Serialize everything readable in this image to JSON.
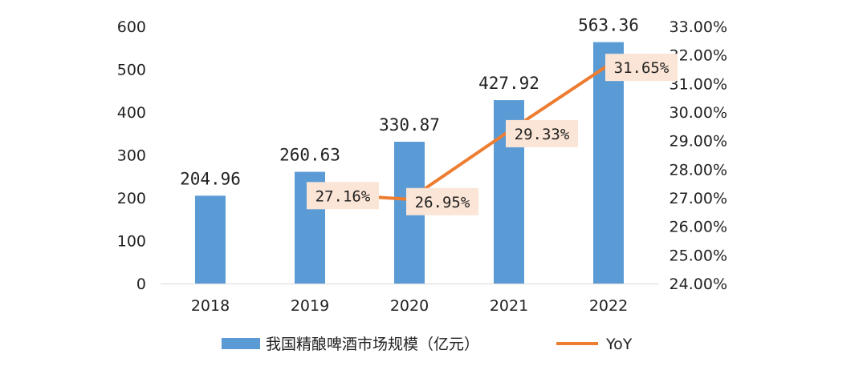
{
  "chart_data": {
    "type": "bar",
    "categories": [
      "2018",
      "2019",
      "2020",
      "2021",
      "2022"
    ],
    "series": [
      {
        "name": "我国精酿啤酒市场规模（亿元）",
        "type": "bar",
        "axis": "left",
        "values": [
          204.96,
          260.63,
          330.87,
          427.92,
          563.36
        ],
        "labels": [
          "204.96",
          "260.63",
          "330.87",
          "427.92",
          "563.36"
        ],
        "color": "#5B9BD5"
      },
      {
        "name": "YoY",
        "type": "line",
        "axis": "right",
        "values": [
          null,
          27.16,
          26.95,
          29.33,
          31.65
        ],
        "labels": [
          "",
          "27.16%",
          "26.95%",
          "29.33%",
          "31.65%"
        ],
        "color": "#ED7D31",
        "label_bg": "#FBE5D6"
      }
    ],
    "y_left": {
      "ylim": [
        0,
        600
      ],
      "ticks": [
        "0",
        "100",
        "200",
        "300",
        "400",
        "500",
        "600"
      ]
    },
    "y_right": {
      "ylim": [
        24,
        33
      ],
      "ticks": [
        "24.00%",
        "25.00%",
        "26.00%",
        "27.00%",
        "28.00%",
        "29.00%",
        "30.00%",
        "31.00%",
        "32.00%",
        "33.00%"
      ]
    },
    "legend_position": "bottom",
    "grid": false
  }
}
